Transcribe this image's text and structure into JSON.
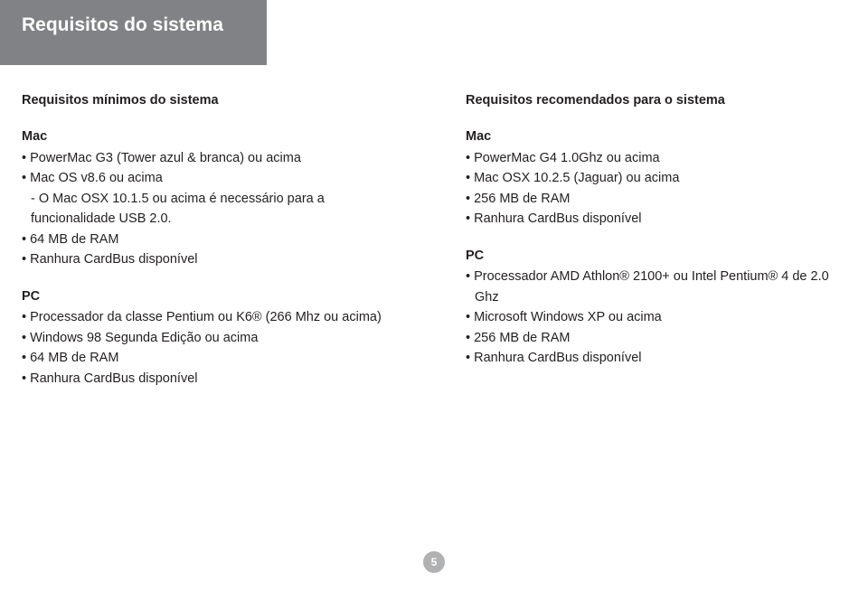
{
  "header": {
    "title": "Requisitos do sistema"
  },
  "left": {
    "section_title": "Requisitos mínimos do sistema",
    "mac": {
      "label": "Mac",
      "items": [
        "PowerMac G3 (Tower azul & branca) ou acima",
        "Mac OS v8.6 ou acima"
      ],
      "dash_prefix": "- ",
      "dash_item": "O Mac OSX 10.1.5 ou acima é necessário para a funcionalidade USB 2.0.",
      "items2": [
        "64 MB de RAM",
        "Ranhura CardBus disponível"
      ]
    },
    "pc": {
      "label": "PC",
      "items": [
        "Processador da classe Pentium ou K6® (266 Mhz ou acima)",
        "Windows 98 Segunda Edição ou acima",
        "64 MB de RAM",
        "Ranhura CardBus disponível"
      ]
    }
  },
  "right": {
    "section_title": "Requisitos recomendados para o sistema",
    "mac": {
      "label": "Mac",
      "items": [
        "PowerMac G4 1.0Ghz ou acima",
        "Mac OSX 10.2.5 (Jaguar) ou acima",
        "256 MB de RAM",
        "Ranhura CardBus disponível"
      ]
    },
    "pc": {
      "label": "PC",
      "items": [
        "Processador AMD Athlon® 2100+ ou Intel Pentium® 4 de 2.0 Ghz",
        "Microsoft Windows XP ou acima",
        "256 MB de RAM",
        "Ranhura CardBus disponível"
      ]
    }
  },
  "page_number": "5",
  "colors": {
    "band": "#808285",
    "text": "#231f20",
    "page_bg": "#ffffff",
    "pagenum_bg": "#b0b1b3"
  }
}
